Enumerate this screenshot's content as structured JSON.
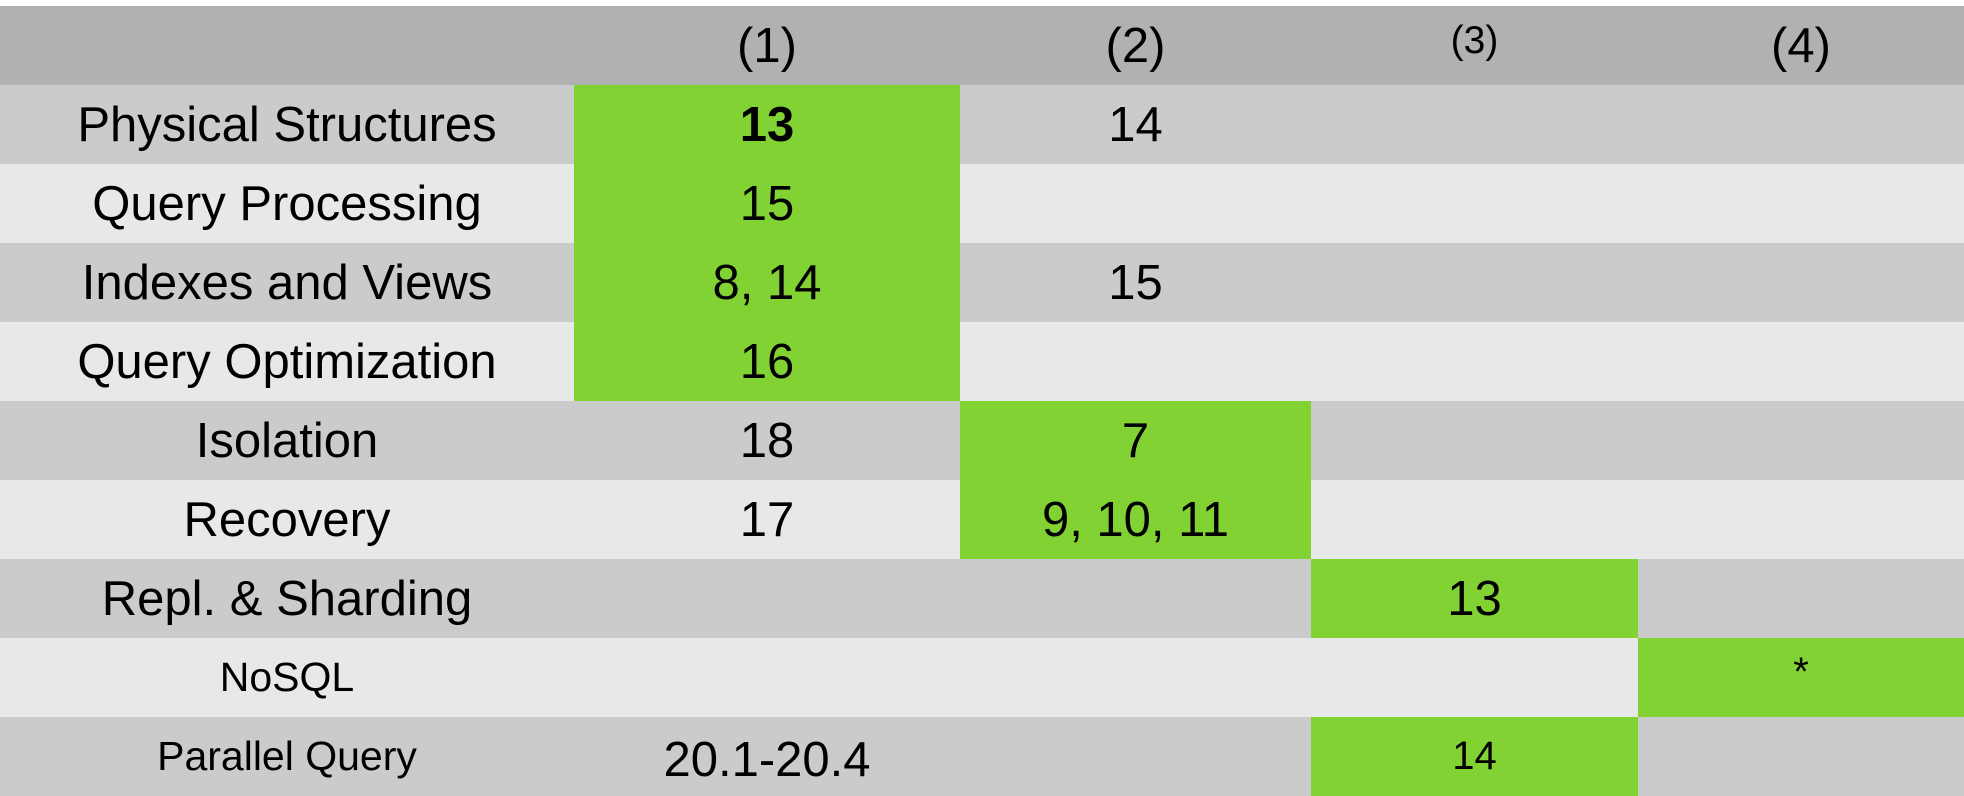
{
  "columns": [
    "",
    "(1)",
    "(2)",
    "(3)",
    "(4)"
  ],
  "rows": [
    {
      "label": "Physical Structures",
      "cells": [
        "13",
        "14",
        "",
        ""
      ]
    },
    {
      "label": "Query Processing",
      "cells": [
        "15",
        "",
        "",
        ""
      ]
    },
    {
      "label": "Indexes and Views",
      "cells": [
        "8, 14",
        "15",
        "",
        ""
      ]
    },
    {
      "label": "Query Optimization",
      "cells": [
        "16",
        "",
        "",
        ""
      ]
    },
    {
      "label": "Isolation",
      "cells": [
        "18",
        "7",
        "",
        ""
      ]
    },
    {
      "label": "Recovery",
      "cells": [
        "17",
        "9, 10, 11",
        "",
        ""
      ]
    },
    {
      "label": "Repl. & Sharding",
      "cells": [
        "",
        "",
        "13",
        ""
      ]
    },
    {
      "label": "NoSQL",
      "cells": [
        "",
        "",
        "",
        "*"
      ]
    },
    {
      "label": "Parallel Query",
      "cells": [
        "20.1-20.4",
        "",
        "14",
        ""
      ]
    }
  ],
  "colors": {
    "header": "#b1b1b1",
    "row_dark": "#cbcbcb",
    "row_light": "#e8e8e8",
    "highlight": "#82d233"
  }
}
